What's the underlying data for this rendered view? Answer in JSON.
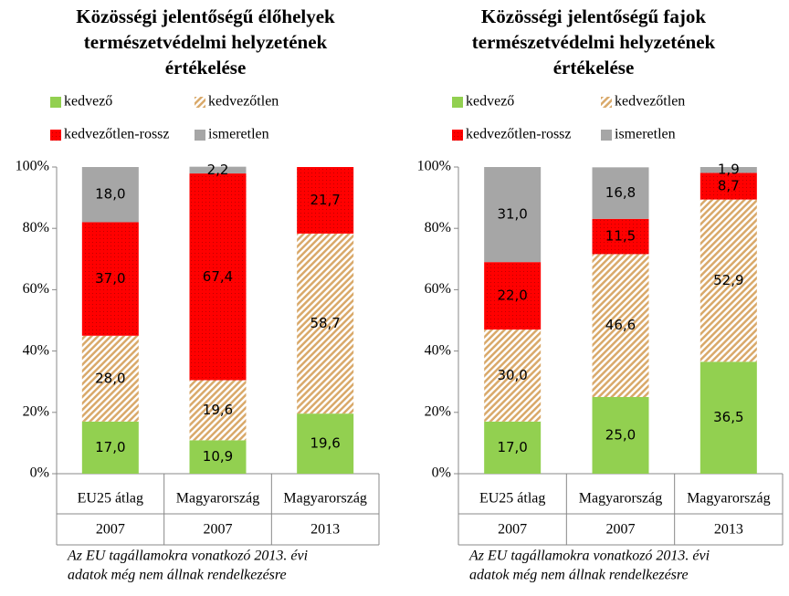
{
  "chart_data": [
    {
      "type": "bar",
      "stacked": true,
      "title": [
        "Közösségi jelentőségű élőhelyek",
        "természetvédelmi helyzetének",
        "értékelése"
      ],
      "categories": [
        "EU25 átlag",
        "Magyarország",
        "Magyarország"
      ],
      "category_years": [
        "2007",
        "2007",
        "2013"
      ],
      "series": [
        {
          "name": "kedvező",
          "color": "#92d050",
          "pattern": "solid",
          "values": [
            17.0,
            10.9,
            19.6
          ],
          "value_labels": [
            "17,0",
            "10,9",
            "19,6"
          ]
        },
        {
          "name": "kedvezőtlen",
          "color": "#d9a96a",
          "pattern": "hatch",
          "values": [
            28.0,
            19.6,
            58.7
          ],
          "value_labels": [
            "28,0",
            "19,6",
            "58,7"
          ]
        },
        {
          "name": "kedvezőtlen-rossz",
          "color": "#ff0000",
          "pattern": "dots",
          "values": [
            37.0,
            67.4,
            21.7
          ],
          "value_labels": [
            "37,0",
            "67,4",
            "21,7"
          ]
        },
        {
          "name": "ismeretlen",
          "color": "#a6a6a6",
          "pattern": "solid",
          "values": [
            18.0,
            2.2,
            null
          ],
          "value_labels": [
            "18,0",
            "2,2",
            null
          ]
        }
      ],
      "ylim": [
        0,
        100
      ],
      "yticks": [
        {
          "value": 0,
          "label": "0%"
        },
        {
          "value": 20,
          "label": "20%"
        },
        {
          "value": 40,
          "label": "40%"
        },
        {
          "value": 60,
          "label": "60%"
        },
        {
          "value": 80,
          "label": "80%"
        },
        {
          "value": 100,
          "label": "100%"
        }
      ],
      "grid": false,
      "note": [
        "Az EU tagállamokra vonatkozó 2013. évi",
        "adatok még nem állnak rendelkezésre"
      ]
    },
    {
      "type": "bar",
      "stacked": true,
      "title": [
        "Közösségi jelentőségű fajok",
        "természetvédelmi helyzetének",
        "értékelése"
      ],
      "categories": [
        "EU25 átlag",
        "Magyarország",
        "Magyarország"
      ],
      "category_years": [
        "2007",
        "2007",
        "2013"
      ],
      "series": [
        {
          "name": "kedvező",
          "color": "#92d050",
          "pattern": "solid",
          "values": [
            17.0,
            25.0,
            36.5
          ],
          "value_labels": [
            "17,0",
            "25,0",
            "36,5"
          ]
        },
        {
          "name": "kedvezőtlen",
          "color": "#d9a96a",
          "pattern": "hatch",
          "values": [
            30.0,
            46.6,
            52.9
          ],
          "value_labels": [
            "30,0",
            "46,6",
            "52,9"
          ]
        },
        {
          "name": "kedvezőtlen-rossz",
          "color": "#ff0000",
          "pattern": "dots",
          "values": [
            22.0,
            11.5,
            8.7
          ],
          "value_labels": [
            "22,0",
            "11,5",
            "8,7"
          ]
        },
        {
          "name": "ismeretlen",
          "color": "#a6a6a6",
          "pattern": "solid",
          "values": [
            31.0,
            16.8,
            1.9
          ],
          "value_labels": [
            "31,0",
            "16,8",
            "1,9"
          ]
        }
      ],
      "ylim": [
        0,
        100
      ],
      "yticks": [
        {
          "value": 0,
          "label": "0%"
        },
        {
          "value": 20,
          "label": "20%"
        },
        {
          "value": 40,
          "label": "40%"
        },
        {
          "value": 60,
          "label": "60%"
        },
        {
          "value": 80,
          "label": "80%"
        },
        {
          "value": 100,
          "label": "100%"
        }
      ],
      "grid": false,
      "note": [
        "Az EU tagállamokra vonatkozó 2013. évi",
        "adatok még nem állnak rendelkezésre"
      ]
    }
  ]
}
